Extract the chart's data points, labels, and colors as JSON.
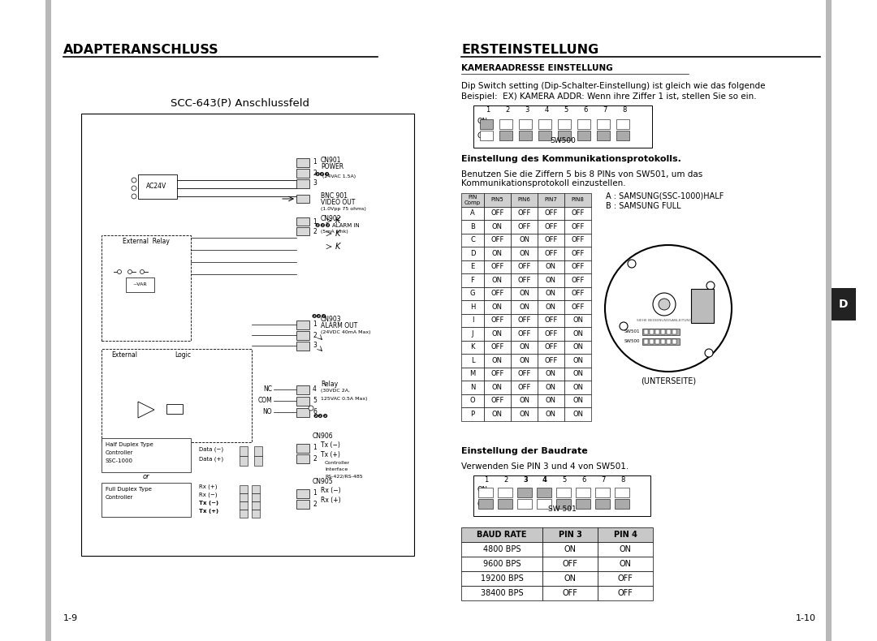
{
  "bg_color": "#ffffff",
  "left_title": "ADAPTERANSCHLUSS",
  "right_title": "ERSTEINSTELLUNG",
  "page_left": "1-9",
  "page_right": "1-10",
  "circuit_title": "SCC-643(P) Anschlussfeld",
  "section2_title": "KAMERAADRESSE EINSTELLUNG",
  "section2_text1": "Dip Switch setting (Dip-Schalter-Einstellung) ist gleich wie das folgende",
  "section2_text2": "Beispiel:  EX) KAMERA ADDR: Wenn ihre Ziffer 1 ist, stellen Sie so ein.",
  "sw500_label": "SW500",
  "section3_title": "Einstellung des Kommunikationsprotokolls.",
  "section3_text1": "Benutzen Sie die Ziffern 5 bis 8 PINs von SW501, um das",
  "section3_text2": "Kommunikationsprotokoll einzustellen.",
  "legend_a": "A : SAMSUNG(SSC-1000)HALF",
  "legend_b": "B : SAMSUNG FULL",
  "unterseite": "(UNTERSEITE)",
  "section4_title": "Einstellung der Baudrate",
  "section4_text": "Verwenden Sie PIN 3 und 4 von SW501.",
  "sw501_label": "SW 501",
  "d_tab_label": "D",
  "protocol_table": {
    "header": [
      "PIN\nComp",
      "PIN5",
      "PIN6",
      "PIN7",
      "PIN8"
    ],
    "rows": [
      [
        "A",
        "OFF",
        "OFF",
        "OFF",
        "OFF"
      ],
      [
        "B",
        "ON",
        "OFF",
        "OFF",
        "OFF"
      ],
      [
        "C",
        "OFF",
        "ON",
        "OFF",
        "OFF"
      ],
      [
        "D",
        "ON",
        "ON",
        "OFF",
        "OFF"
      ],
      [
        "E",
        "OFF",
        "OFF",
        "ON",
        "OFF"
      ],
      [
        "F",
        "ON",
        "OFF",
        "ON",
        "OFF"
      ],
      [
        "G",
        "OFF",
        "ON",
        "ON",
        "OFF"
      ],
      [
        "H",
        "ON",
        "ON",
        "ON",
        "OFF"
      ],
      [
        "I",
        "OFF",
        "OFF",
        "OFF",
        "ON"
      ],
      [
        "J",
        "ON",
        "OFF",
        "OFF",
        "ON"
      ],
      [
        "K",
        "OFF",
        "ON",
        "OFF",
        "ON"
      ],
      [
        "L",
        "ON",
        "ON",
        "OFF",
        "ON"
      ],
      [
        "M",
        "OFF",
        "OFF",
        "ON",
        "ON"
      ],
      [
        "N",
        "ON",
        "OFF",
        "ON",
        "ON"
      ],
      [
        "O",
        "OFF",
        "ON",
        "ON",
        "ON"
      ],
      [
        "P",
        "ON",
        "ON",
        "ON",
        "ON"
      ]
    ]
  },
  "baud_table": {
    "header": [
      "BAUD RATE",
      "PIN 3",
      "PIN 4"
    ],
    "rows": [
      [
        "4800 BPS",
        "ON",
        "ON"
      ],
      [
        "9600 BPS",
        "OFF",
        "ON"
      ],
      [
        "19200 BPS",
        "ON",
        "OFF"
      ],
      [
        "38400 BPS",
        "OFF",
        "OFF"
      ]
    ]
  }
}
